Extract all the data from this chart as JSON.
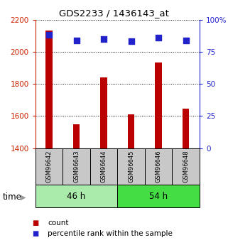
{
  "title": "GDS2233 / 1436143_at",
  "samples": [
    "GSM96642",
    "GSM96643",
    "GSM96644",
    "GSM96645",
    "GSM96646",
    "GSM96648"
  ],
  "counts": [
    2130,
    1548,
    1840,
    1610,
    1935,
    1645
  ],
  "percentiles": [
    88,
    84,
    85,
    83,
    86,
    84
  ],
  "ylim_left": [
    1400,
    2200
  ],
  "ylim_right": [
    0,
    100
  ],
  "yticks_left": [
    1400,
    1600,
    1800,
    2000,
    2200
  ],
  "yticks_right": [
    0,
    25,
    50,
    75,
    100
  ],
  "ytick_right_labels": [
    "0",
    "25",
    "50",
    "75",
    "100%"
  ],
  "groups": [
    {
      "label": "46 h",
      "indices": [
        0,
        1,
        2
      ],
      "color": "#aaeaaa"
    },
    {
      "label": "54 h",
      "indices": [
        3,
        4,
        5
      ],
      "color": "#44dd44"
    }
  ],
  "bar_color": "#bb0000",
  "dot_color": "#2222cc",
  "left_axis_color": "#cc2200",
  "right_axis_color": "#2222cc",
  "bar_width": 0.25,
  "dot_size": 30,
  "legend_labels": [
    "count",
    "percentile rank within the sample"
  ],
  "time_label": "time"
}
